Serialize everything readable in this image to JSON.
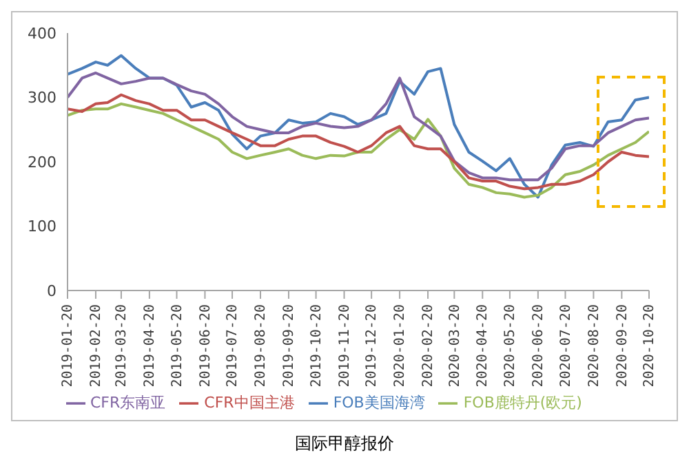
{
  "chart_data": {
    "type": "line",
    "title": "国际甲醇报价",
    "x": [
      "2019-01-20",
      "2019-02-05",
      "2019-02-20",
      "2019-03-05",
      "2019-03-20",
      "2019-04-05",
      "2019-04-20",
      "2019-05-05",
      "2019-05-20",
      "2019-06-05",
      "2019-06-20",
      "2019-07-05",
      "2019-07-20",
      "2019-08-05",
      "2019-08-20",
      "2019-09-05",
      "2019-09-20",
      "2019-10-05",
      "2019-10-20",
      "2019-11-05",
      "2019-11-20",
      "2019-12-05",
      "2019-12-20",
      "2020-01-05",
      "2020-01-20",
      "2020-02-05",
      "2020-02-20",
      "2020-03-05",
      "2020-03-20",
      "2020-04-05",
      "2020-04-20",
      "2020-05-05",
      "2020-05-20",
      "2020-06-05",
      "2020-06-20",
      "2020-07-05",
      "2020-07-20",
      "2020-08-05",
      "2020-08-20",
      "2020-09-05",
      "2020-09-20",
      "2020-10-05",
      "2020-10-20"
    ],
    "series": [
      {
        "name": "FOB美国海湾",
        "color": "#4a7ebb",
        "values": [
          336,
          345,
          355,
          350,
          365,
          345,
          330,
          330,
          319,
          285,
          292,
          280,
          243,
          220,
          240,
          245,
          265,
          260,
          262,
          275,
          270,
          258,
          265,
          275,
          325,
          305,
          340,
          345,
          258,
          215,
          201,
          186,
          205,
          165,
          145,
          195,
          226,
          230,
          224,
          262,
          265,
          296,
          300
        ]
      },
      {
        "name": "FOB鹿特丹(欧元)",
        "color": "#9bbb59",
        "values": [
          272,
          280,
          282,
          282,
          290,
          285,
          280,
          275,
          265,
          255,
          245,
          235,
          215,
          205,
          210,
          215,
          220,
          210,
          205,
          210,
          209,
          215,
          215,
          235,
          250,
          235,
          266,
          240,
          190,
          165,
          160,
          152,
          150,
          145,
          148,
          160,
          180,
          185,
          195,
          210,
          220,
          230,
          247
        ]
      },
      {
        "name": "CFR东南亚",
        "color": "#8064a2",
        "values": [
          300,
          330,
          338,
          330,
          321,
          325,
          330,
          330,
          320,
          310,
          305,
          290,
          270,
          255,
          250,
          245,
          245,
          255,
          260,
          255,
          253,
          255,
          265,
          290,
          330,
          270,
          255,
          240,
          201,
          183,
          175,
          175,
          172,
          172,
          172,
          190,
          220,
          225,
          225,
          245,
          255,
          265,
          268
        ]
      },
      {
        "name": "CFR中国主港",
        "color": "#c0504d",
        "values": [
          282,
          278,
          290,
          292,
          304,
          295,
          290,
          280,
          280,
          265,
          265,
          255,
          245,
          235,
          225,
          225,
          235,
          240,
          240,
          230,
          224,
          215,
          225,
          245,
          255,
          225,
          220,
          220,
          200,
          175,
          170,
          170,
          162,
          158,
          160,
          165,
          165,
          170,
          180,
          200,
          215,
          210,
          208
        ]
      }
    ],
    "xlim": [
      "2019-01-20",
      "2020-10-20"
    ],
    "xticks": [
      "2019-01-20",
      "2019-02-20",
      "2019-03-20",
      "2019-04-20",
      "2019-05-20",
      "2019-06-20",
      "2019-07-20",
      "2019-08-20",
      "2019-09-20",
      "2019-10-20",
      "2019-11-20",
      "2019-12-20",
      "2020-01-20",
      "2020-02-20",
      "2020-03-20",
      "2020-04-20",
      "2020-05-20",
      "2020-06-20",
      "2020-07-20",
      "2020-08-20",
      "2020-09-20",
      "2020-10-20"
    ],
    "ylim": [
      0,
      400
    ],
    "yticks": [
      0,
      100,
      200,
      300,
      400
    ],
    "grid": false,
    "legend": "bottom",
    "marker": "none",
    "line_style": "solid"
  }
}
